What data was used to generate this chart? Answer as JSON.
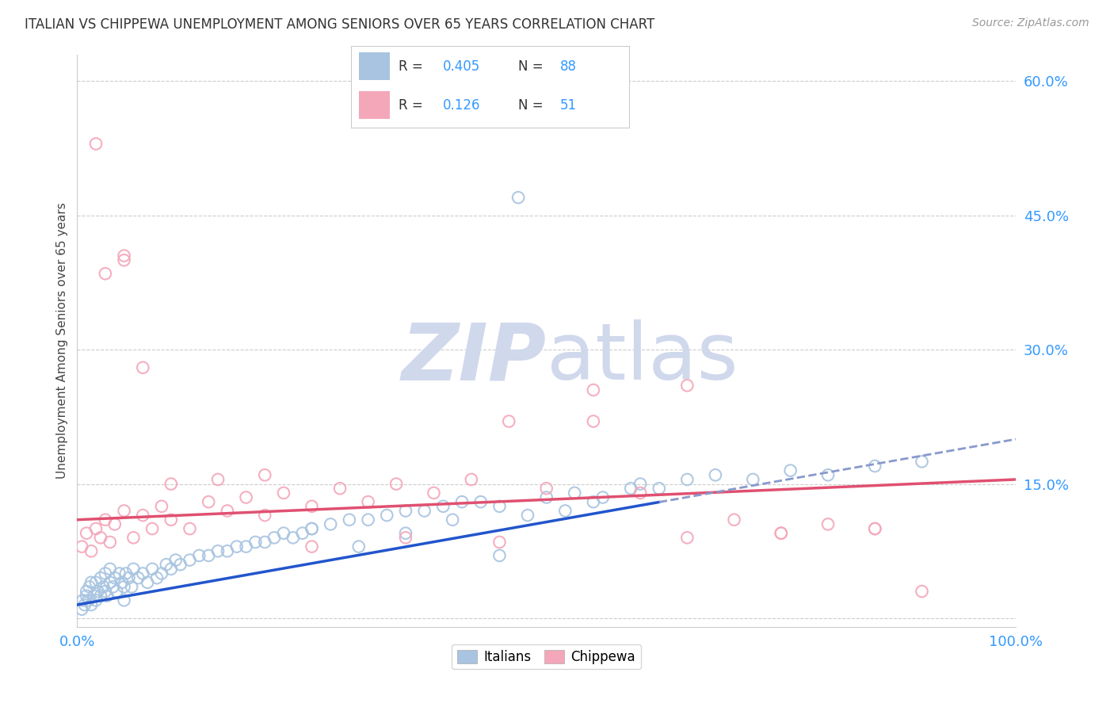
{
  "title": "ITALIAN VS CHIPPEWA UNEMPLOYMENT AMONG SENIORS OVER 65 YEARS CORRELATION CHART",
  "source": "Source: ZipAtlas.com",
  "ylabel": "Unemployment Among Seniors over 65 years",
  "xlim": [
    0,
    100
  ],
  "ylim": [
    -1,
    63
  ],
  "yticks": [
    0,
    15,
    30,
    45,
    60
  ],
  "italians_R": 0.405,
  "italians_N": 88,
  "chippewa_R": 0.126,
  "chippewa_N": 51,
  "italian_color": "#a8c4e0",
  "chippewa_color": "#f4a7b9",
  "italian_line_color": "#2255cc",
  "chippewa_line_color": "#e05070",
  "italian_dash_color": "#8899cc",
  "watermark_zip": "ZIP",
  "watermark_atlas": "atlas",
  "watermark_color": "#d0d8ec",
  "tick_color": "#3399ff",
  "legend_text_color": "#333333",
  "legend_value_color": "#3399ff",
  "it_line_x0": 0,
  "it_line_y0": 1.5,
  "it_line_x1": 100,
  "it_line_y1": 20.0,
  "ch_line_x0": 0,
  "ch_line_y0": 11.0,
  "ch_line_x1": 100,
  "ch_line_y1": 15.5,
  "it_dash_x0": 62,
  "it_dash_x1": 100,
  "italians_x": [
    0.5,
    0.6,
    0.8,
    1.0,
    1.0,
    1.2,
    1.3,
    1.5,
    1.5,
    1.8,
    2.0,
    2.0,
    2.2,
    2.5,
    2.5,
    2.8,
    3.0,
    3.0,
    3.2,
    3.5,
    3.5,
    3.8,
    4.0,
    4.2,
    4.5,
    4.8,
    5.0,
    5.2,
    5.5,
    5.8,
    6.0,
    6.5,
    7.0,
    7.5,
    8.0,
    8.5,
    9.0,
    9.5,
    10.0,
    10.5,
    11.0,
    12.0,
    13.0,
    14.0,
    15.0,
    16.0,
    17.0,
    18.0,
    19.0,
    20.0,
    21.0,
    22.0,
    23.0,
    24.0,
    25.0,
    27.0,
    29.0,
    31.0,
    33.0,
    35.0,
    37.0,
    39.0,
    41.0,
    43.0,
    45.0,
    47.0,
    50.0,
    53.0,
    56.0,
    59.0,
    62.0,
    65.0,
    68.0,
    72.0,
    76.0,
    80.0,
    85.0,
    90.0,
    5.0,
    30.0,
    25.0,
    35.0,
    40.0,
    45.0,
    48.0,
    52.0,
    55.0,
    60.0
  ],
  "italians_y": [
    1.0,
    2.0,
    1.5,
    2.5,
    3.0,
    2.0,
    3.5,
    1.5,
    4.0,
    2.5,
    2.0,
    4.0,
    3.0,
    4.5,
    2.5,
    3.5,
    3.0,
    5.0,
    2.5,
    4.0,
    5.5,
    3.5,
    4.5,
    3.0,
    5.0,
    4.0,
    3.5,
    5.0,
    4.5,
    3.5,
    5.5,
    4.5,
    5.0,
    4.0,
    5.5,
    4.5,
    5.0,
    6.0,
    5.5,
    6.5,
    6.0,
    6.5,
    7.0,
    7.0,
    7.5,
    7.5,
    8.0,
    8.0,
    8.5,
    8.5,
    9.0,
    9.5,
    9.0,
    9.5,
    10.0,
    10.5,
    11.0,
    11.0,
    11.5,
    12.0,
    12.0,
    12.5,
    13.0,
    13.0,
    12.5,
    47.0,
    13.5,
    14.0,
    13.5,
    14.5,
    14.5,
    15.5,
    16.0,
    15.5,
    16.5,
    16.0,
    17.0,
    17.5,
    2.0,
    8.0,
    10.0,
    9.5,
    11.0,
    7.0,
    11.5,
    12.0,
    13.0,
    15.0
  ],
  "chippewa_x": [
    0.5,
    1.0,
    1.5,
    2.0,
    2.5,
    3.0,
    3.5,
    4.0,
    5.0,
    6.0,
    7.0,
    8.0,
    9.0,
    10.0,
    12.0,
    14.0,
    16.0,
    18.0,
    20.0,
    22.0,
    25.0,
    28.0,
    31.0,
    34.0,
    38.0,
    42.0,
    46.0,
    50.0,
    55.0,
    60.0,
    65.0,
    70.0,
    75.0,
    80.0,
    85.0,
    90.0,
    3.0,
    5.0,
    7.0,
    10.0,
    15.0,
    20.0,
    25.0,
    35.0,
    45.0,
    55.0,
    65.0,
    75.0,
    85.0,
    5.0,
    2.0
  ],
  "chippewa_y": [
    8.0,
    9.5,
    7.5,
    10.0,
    9.0,
    11.0,
    8.5,
    10.5,
    12.0,
    9.0,
    11.5,
    10.0,
    12.5,
    11.0,
    10.0,
    13.0,
    12.0,
    13.5,
    11.5,
    14.0,
    12.5,
    14.5,
    13.0,
    15.0,
    14.0,
    15.5,
    22.0,
    14.5,
    25.5,
    14.0,
    26.0,
    11.0,
    9.5,
    10.5,
    10.0,
    3.0,
    38.5,
    40.0,
    28.0,
    15.0,
    15.5,
    16.0,
    8.0,
    9.0,
    8.5,
    22.0,
    9.0,
    9.5,
    10.0,
    40.5,
    53.0
  ]
}
